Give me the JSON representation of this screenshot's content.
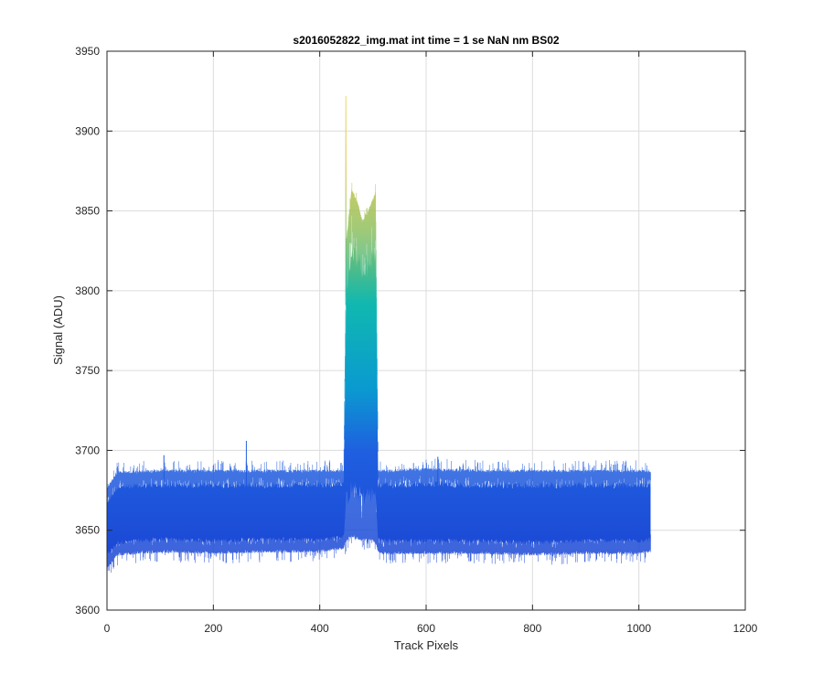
{
  "chart_data": {
    "type": "area",
    "title": "s2016052822_img.mat int time = 1 se  NaN nm BS02",
    "xlabel": "Track Pixels",
    "ylabel": "Signal (ADU)",
    "xlim": [
      0,
      1200
    ],
    "ylim": [
      3600,
      3950
    ],
    "xticks": [
      "0",
      "200",
      "400",
      "600",
      "800",
      "1000",
      "1200"
    ],
    "yticks": [
      "3600",
      "3650",
      "3700",
      "3750",
      "3800",
      "3850",
      "3900",
      "3950"
    ],
    "grid": true,
    "series": [
      {
        "style": "band",
        "x": [
          0,
          20,
          100,
          200,
          300,
          400,
          445,
          450,
          460,
          470,
          480,
          490,
          500,
          505,
          510,
          520,
          600,
          700,
          800,
          900,
          1000,
          1022
        ],
        "lower": [
          3628,
          3636,
          3638,
          3637,
          3638,
          3638,
          3640,
          3645,
          3648,
          3646,
          3645,
          3646,
          3645,
          3643,
          3638,
          3637,
          3637,
          3637,
          3636,
          3637,
          3637,
          3638
        ],
        "upper": [
          3675,
          3685,
          3686,
          3686,
          3686,
          3686,
          3686,
          3830,
          3862,
          3855,
          3842,
          3848,
          3856,
          3860,
          3686,
          3686,
          3687,
          3686,
          3686,
          3686,
          3686,
          3686
        ],
        "colors": {
          "low": "#1f4fd6",
          "mid": "#00a6c6",
          "high": "#c9bf3a"
        }
      }
    ],
    "spikes": [
      {
        "x": 449,
        "y": 3922
      },
      {
        "x": 262,
        "y": 3706
      },
      {
        "x": 622,
        "y": 3696
      },
      {
        "x": 107,
        "y": 3697
      }
    ]
  }
}
